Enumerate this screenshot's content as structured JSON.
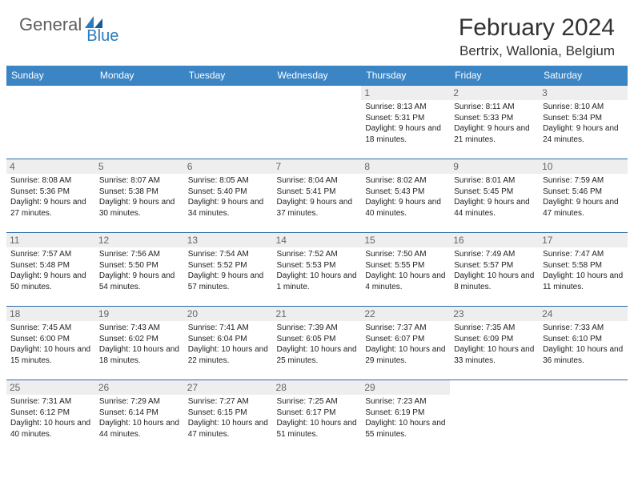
{
  "logo": {
    "text1": "General",
    "text2": "Blue"
  },
  "title": "February 2024",
  "location": "Bertrix, Wallonia, Belgium",
  "theme": {
    "header_bg": "#3b85c5",
    "header_text": "#ffffff",
    "border": "#2b6aa8",
    "daynum_bg": "#eeeeee",
    "daynum_text": "#666666",
    "body_text": "#222222",
    "logo_gray": "#5e5e5e",
    "logo_blue": "#2b7bbf",
    "title_color": "#333333"
  },
  "day_names": [
    "Sunday",
    "Monday",
    "Tuesday",
    "Wednesday",
    "Thursday",
    "Friday",
    "Saturday"
  ],
  "weeks": [
    [
      null,
      null,
      null,
      null,
      {
        "n": "1",
        "sr": "8:13 AM",
        "ss": "5:31 PM",
        "dl": "9 hours and 18 minutes."
      },
      {
        "n": "2",
        "sr": "8:11 AM",
        "ss": "5:33 PM",
        "dl": "9 hours and 21 minutes."
      },
      {
        "n": "3",
        "sr": "8:10 AM",
        "ss": "5:34 PM",
        "dl": "9 hours and 24 minutes."
      }
    ],
    [
      {
        "n": "4",
        "sr": "8:08 AM",
        "ss": "5:36 PM",
        "dl": "9 hours and 27 minutes."
      },
      {
        "n": "5",
        "sr": "8:07 AM",
        "ss": "5:38 PM",
        "dl": "9 hours and 30 minutes."
      },
      {
        "n": "6",
        "sr": "8:05 AM",
        "ss": "5:40 PM",
        "dl": "9 hours and 34 minutes."
      },
      {
        "n": "7",
        "sr": "8:04 AM",
        "ss": "5:41 PM",
        "dl": "9 hours and 37 minutes."
      },
      {
        "n": "8",
        "sr": "8:02 AM",
        "ss": "5:43 PM",
        "dl": "9 hours and 40 minutes."
      },
      {
        "n": "9",
        "sr": "8:01 AM",
        "ss": "5:45 PM",
        "dl": "9 hours and 44 minutes."
      },
      {
        "n": "10",
        "sr": "7:59 AM",
        "ss": "5:46 PM",
        "dl": "9 hours and 47 minutes."
      }
    ],
    [
      {
        "n": "11",
        "sr": "7:57 AM",
        "ss": "5:48 PM",
        "dl": "9 hours and 50 minutes."
      },
      {
        "n": "12",
        "sr": "7:56 AM",
        "ss": "5:50 PM",
        "dl": "9 hours and 54 minutes."
      },
      {
        "n": "13",
        "sr": "7:54 AM",
        "ss": "5:52 PM",
        "dl": "9 hours and 57 minutes."
      },
      {
        "n": "14",
        "sr": "7:52 AM",
        "ss": "5:53 PM",
        "dl": "10 hours and 1 minute."
      },
      {
        "n": "15",
        "sr": "7:50 AM",
        "ss": "5:55 PM",
        "dl": "10 hours and 4 minutes."
      },
      {
        "n": "16",
        "sr": "7:49 AM",
        "ss": "5:57 PM",
        "dl": "10 hours and 8 minutes."
      },
      {
        "n": "17",
        "sr": "7:47 AM",
        "ss": "5:58 PM",
        "dl": "10 hours and 11 minutes."
      }
    ],
    [
      {
        "n": "18",
        "sr": "7:45 AM",
        "ss": "6:00 PM",
        "dl": "10 hours and 15 minutes."
      },
      {
        "n": "19",
        "sr": "7:43 AM",
        "ss": "6:02 PM",
        "dl": "10 hours and 18 minutes."
      },
      {
        "n": "20",
        "sr": "7:41 AM",
        "ss": "6:04 PM",
        "dl": "10 hours and 22 minutes."
      },
      {
        "n": "21",
        "sr": "7:39 AM",
        "ss": "6:05 PM",
        "dl": "10 hours and 25 minutes."
      },
      {
        "n": "22",
        "sr": "7:37 AM",
        "ss": "6:07 PM",
        "dl": "10 hours and 29 minutes."
      },
      {
        "n": "23",
        "sr": "7:35 AM",
        "ss": "6:09 PM",
        "dl": "10 hours and 33 minutes."
      },
      {
        "n": "24",
        "sr": "7:33 AM",
        "ss": "6:10 PM",
        "dl": "10 hours and 36 minutes."
      }
    ],
    [
      {
        "n": "25",
        "sr": "7:31 AM",
        "ss": "6:12 PM",
        "dl": "10 hours and 40 minutes."
      },
      {
        "n": "26",
        "sr": "7:29 AM",
        "ss": "6:14 PM",
        "dl": "10 hours and 44 minutes."
      },
      {
        "n": "27",
        "sr": "7:27 AM",
        "ss": "6:15 PM",
        "dl": "10 hours and 47 minutes."
      },
      {
        "n": "28",
        "sr": "7:25 AM",
        "ss": "6:17 PM",
        "dl": "10 hours and 51 minutes."
      },
      {
        "n": "29",
        "sr": "7:23 AM",
        "ss": "6:19 PM",
        "dl": "10 hours and 55 minutes."
      },
      null,
      null
    ]
  ]
}
